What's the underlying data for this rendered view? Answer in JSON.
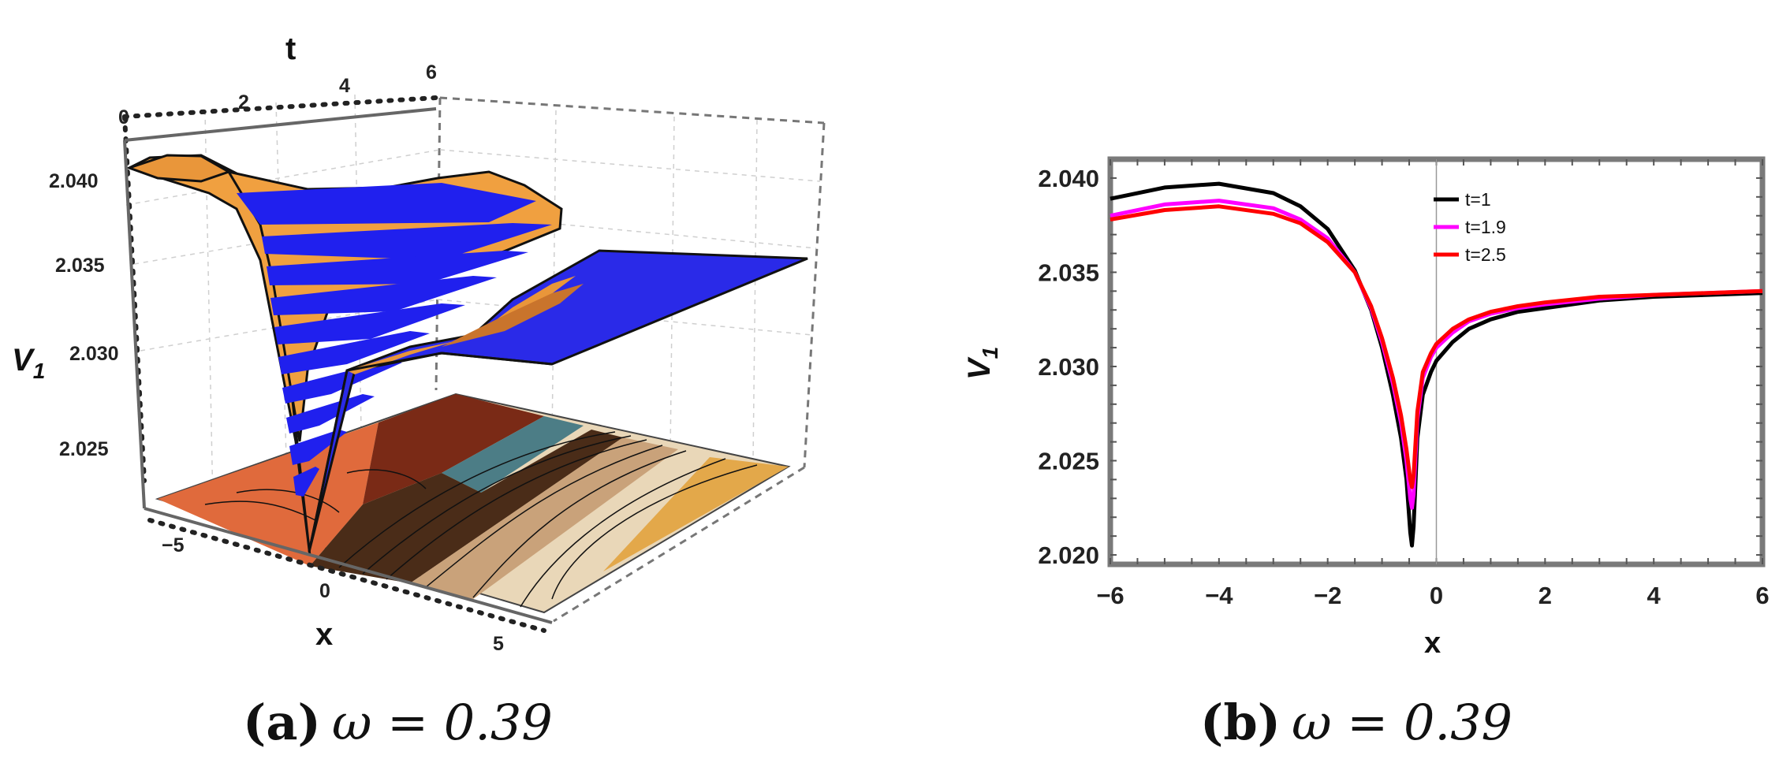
{
  "panel_a": {
    "caption_letter": "(a)",
    "caption_rest": "ω = 0.39",
    "x_label": "x",
    "t_label": "t",
    "v_label": "V",
    "v_label_sub": "1",
    "x_ticks": [
      "−5",
      "0",
      "5"
    ],
    "t_ticks": [
      "0",
      "2",
      "4",
      "6"
    ],
    "v_ticks": [
      "2.040",
      "2.035",
      "2.030",
      "2.025"
    ],
    "colors": {
      "surface_orange": "#f0a040",
      "surface_blue": "#2222ee",
      "contour_dark": "#7a2a16",
      "contour_light": "#ead9bd"
    }
  },
  "panel_b": {
    "caption_letter": "(b)",
    "caption_rest": "ω = 0.39",
    "xlabel": "x",
    "ylabel": "V",
    "ylabel_sub": "1",
    "legend_entries": [
      "t=1",
      "t=1.9",
      "t=2.5"
    ]
  },
  "chart_data": [
    {
      "type": "surface",
      "xlabel": "x",
      "ylabel": "t",
      "zlabel": "V1",
      "xlim": [
        -6,
        6
      ],
      "ylim": [
        0,
        6
      ],
      "zlim": [
        2.021,
        2.041
      ],
      "x_ticks": [
        -5,
        0,
        5
      ],
      "y_ticks": [
        0,
        2,
        4,
        6
      ],
      "z_ticks": [
        2.025,
        2.03,
        2.035,
        2.04
      ],
      "caption": "(a) ω = 0.39"
    },
    {
      "type": "line",
      "xlabel": "x",
      "ylabel": "V1",
      "xlim": [
        -6,
        6
      ],
      "ylim": [
        2.0195,
        2.041
      ],
      "x_ticks": [
        -6,
        -4,
        -2,
        0,
        2,
        4,
        6
      ],
      "y_ticks": [
        2.02,
        2.025,
        2.03,
        2.035,
        2.04
      ],
      "legend": "top-right",
      "caption": "(b) ω = 0.39",
      "series": [
        {
          "name": "t=1",
          "color": "#000000",
          "x": [
            -6,
            -5,
            -4,
            -3,
            -2.5,
            -2,
            -1.5,
            -1.2,
            -1.0,
            -0.8,
            -0.65,
            -0.55,
            -0.48,
            -0.45,
            -0.42,
            -0.35,
            -0.25,
            -0.1,
            0,
            0.3,
            0.6,
            1,
            1.5,
            2,
            3,
            4,
            5,
            6
          ],
          "y": [
            2.0389,
            2.0395,
            2.0397,
            2.0392,
            2.0385,
            2.0373,
            2.0351,
            2.033,
            2.031,
            2.0285,
            2.0262,
            2.024,
            2.0212,
            2.0205,
            2.0215,
            2.0262,
            2.0285,
            2.0297,
            2.0303,
            2.0313,
            2.032,
            2.0325,
            2.0329,
            2.0331,
            2.0335,
            2.0337,
            2.0338,
            2.0339
          ]
        },
        {
          "name": "t=1.9",
          "color": "#ff00ff",
          "x": [
            -6,
            -5,
            -4,
            -3,
            -2.5,
            -2,
            -1.5,
            -1.2,
            -1.0,
            -0.8,
            -0.65,
            -0.55,
            -0.48,
            -0.45,
            -0.42,
            -0.35,
            -0.25,
            -0.1,
            0,
            0.3,
            0.6,
            1,
            1.5,
            2,
            3,
            4,
            5,
            6
          ],
          "y": [
            2.038,
            2.0386,
            2.0388,
            2.0384,
            2.0378,
            2.0368,
            2.035,
            2.0331,
            2.0313,
            2.0291,
            2.027,
            2.025,
            2.023,
            2.0225,
            2.0232,
            2.0272,
            2.0294,
            2.0305,
            2.031,
            2.0318,
            2.0324,
            2.0328,
            2.0331,
            2.0333,
            2.0336,
            2.0338,
            2.0339,
            2.034
          ]
        },
        {
          "name": "t=2.5",
          "color": "#ff0000",
          "x": [
            -6,
            -5,
            -4,
            -3,
            -2.5,
            -2,
            -1.5,
            -1.2,
            -1.0,
            -0.8,
            -0.65,
            -0.55,
            -0.48,
            -0.45,
            -0.42,
            -0.35,
            -0.25,
            -0.1,
            0,
            0.3,
            0.6,
            1,
            1.5,
            2,
            3,
            4,
            5,
            6
          ],
          "y": [
            2.0378,
            2.0383,
            2.0385,
            2.0381,
            2.0376,
            2.0366,
            2.035,
            2.0332,
            2.0315,
            2.0294,
            2.0274,
            2.0256,
            2.024,
            2.0236,
            2.0242,
            2.0276,
            2.0297,
            2.0307,
            2.0312,
            2.032,
            2.0325,
            2.0329,
            2.0332,
            2.0334,
            2.0337,
            2.0338,
            2.0339,
            2.034
          ]
        }
      ]
    }
  ]
}
